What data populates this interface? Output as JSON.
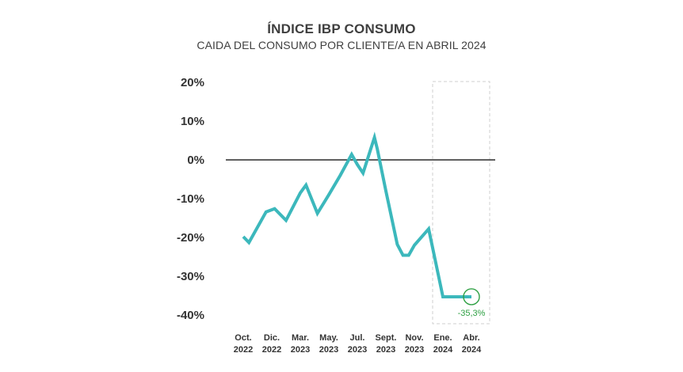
{
  "header": {
    "title": "ÍNDICE IBP CONSUMO",
    "subtitle": "CAIDA DEL CONSUMO POR CLIENTE/A EN ABRIL 2024"
  },
  "chart_data": {
    "type": "line",
    "title": "ÍNDICE IBP CONSUMO",
    "subtitle": "CAIDA DEL CONSUMO POR CLIENTE/A EN ABRIL 2024",
    "xlabel": "",
    "ylabel": "",
    "ylim": [
      -40,
      20
    ],
    "yticks": [
      20,
      10,
      0,
      -10,
      -20,
      -30,
      -40
    ],
    "ytick_labels": [
      "20%",
      "10%",
      "0%",
      "-10%",
      "-20%",
      "-30%",
      "-40%"
    ],
    "xticks": [
      {
        "line1": "Oct.",
        "line2": "2022"
      },
      {
        "line1": "Dic.",
        "line2": "2022"
      },
      {
        "line1": "Mar.",
        "line2": "2023"
      },
      {
        "line1": "May.",
        "line2": "2023"
      },
      {
        "line1": "Jul.",
        "line2": "2023"
      },
      {
        "line1": "Sept.",
        "line2": "2023"
      },
      {
        "line1": "Nov.",
        "line2": "2023"
      },
      {
        "line1": "Ene.",
        "line2": "2024"
      },
      {
        "line1": "Abr.",
        "line2": "2024"
      }
    ],
    "series": [
      {
        "color": "#3cb8bc",
        "x": [
          0,
          0.2,
          0.8,
          1.1,
          1.5,
          2.0,
          2.2,
          2.6,
          3.0,
          3.4,
          3.8,
          4.0,
          4.2,
          4.4,
          4.6,
          4.7,
          5.0,
          5.4,
          5.6,
          5.8,
          6.0,
          6.5,
          7.0,
          7.2,
          7.6,
          8.0
        ],
        "values": [
          -19.8,
          -21.3,
          -13.4,
          -12.6,
          -15.6,
          -8.5,
          -6.5,
          -13.8,
          -9.0,
          -4.0,
          1.4,
          -1.2,
          -3.4,
          1.2,
          5.8,
          2.8,
          -8.0,
          -21.8,
          -24.6,
          -24.6,
          -22.0,
          -17.8,
          -35.3,
          -35.3,
          -35.3,
          -35.3
        ]
      }
    ],
    "zero_line": true,
    "grid": false,
    "highlight_box": {
      "x_from": "Ene. 2024",
      "x_to": "Abr. 2024",
      "style": "dashed"
    },
    "annotation": {
      "x": 8.0,
      "y": -35.3,
      "label": "-35,3%",
      "color": "#2ea043"
    }
  }
}
